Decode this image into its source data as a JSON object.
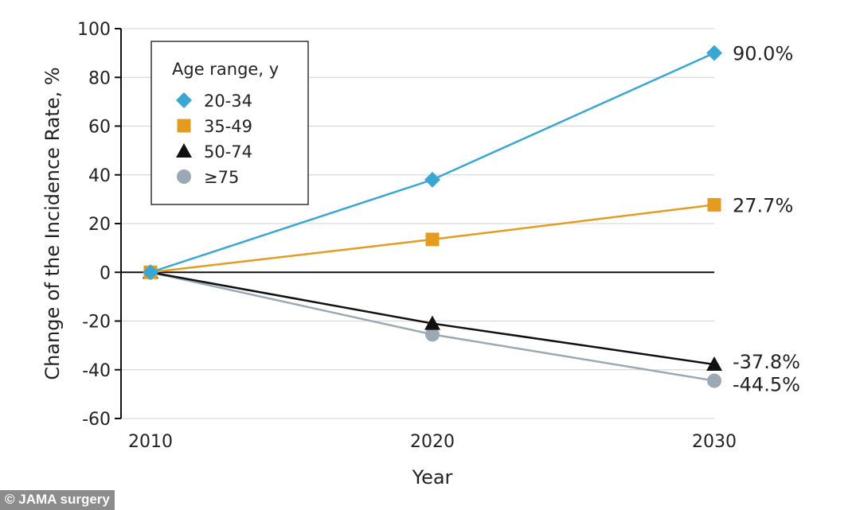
{
  "chart_data": {
    "type": "line",
    "x": [
      2010,
      2020,
      2030
    ],
    "xlabel": "Year",
    "ylabel": "Change of the Incidence Rate, %",
    "xticks": [
      "2010",
      "2020",
      "2030"
    ],
    "yticks": [
      100,
      80,
      60,
      40,
      20,
      0,
      -20,
      -40,
      -60
    ],
    "ylim": [
      -60,
      100
    ],
    "grid": true,
    "legend_title": "Age range, y",
    "legend_position": "top-left",
    "series": [
      {
        "name": "20-34",
        "values": [
          0,
          38,
          90.0
        ],
        "end_label": "90.0%",
        "color": "#3aa6d3",
        "marker": "diamond"
      },
      {
        "name": "35-49",
        "values": [
          0,
          13.5,
          27.7
        ],
        "end_label": "27.7%",
        "color": "#e59b20",
        "marker": "square"
      },
      {
        "name": "50-74",
        "values": [
          0,
          -21,
          -37.8
        ],
        "end_label": "-37.8%",
        "color": "#111111",
        "marker": "triangle"
      },
      {
        "name": "≥75",
        "values": [
          0,
          -25.5,
          -44.5
        ],
        "end_label": "-44.5%",
        "color": "#9aa9b4",
        "marker": "circle"
      }
    ]
  },
  "credit": "© JAMA surgery"
}
